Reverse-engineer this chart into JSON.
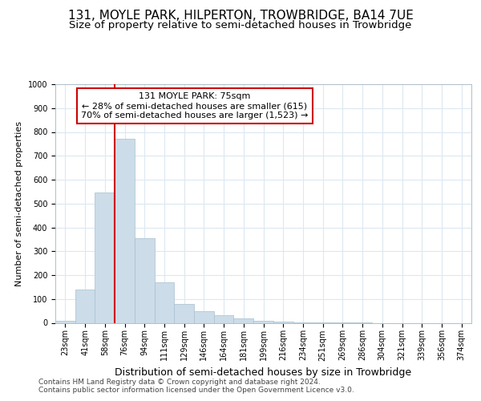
{
  "title1": "131, MOYLE PARK, HILPERTON, TROWBRIDGE, BA14 7UE",
  "title2": "Size of property relative to semi-detached houses in Trowbridge",
  "xlabel": "Distribution of semi-detached houses by size in Trowbridge",
  "ylabel": "Number of semi-detached properties",
  "categories": [
    "23sqm",
    "41sqm",
    "58sqm",
    "76sqm",
    "94sqm",
    "111sqm",
    "129sqm",
    "146sqm",
    "164sqm",
    "181sqm",
    "199sqm",
    "216sqm",
    "234sqm",
    "251sqm",
    "269sqm",
    "286sqm",
    "304sqm",
    "321sqm",
    "339sqm",
    "356sqm",
    "374sqm"
  ],
  "values": [
    8,
    138,
    545,
    770,
    355,
    170,
    80,
    50,
    33,
    17,
    10,
    5,
    3,
    2,
    1,
    1,
    0,
    0,
    0,
    0,
    0
  ],
  "bar_color": "#ccdce8",
  "bar_edge_color": "#a8c0d0",
  "vline_color": "#cc0000",
  "annotation_text": "131 MOYLE PARK: 75sqm\n← 28% of semi-detached houses are smaller (615)\n70% of semi-detached houses are larger (1,523) →",
  "annotation_box_color": "#ffffff",
  "annotation_box_edge": "#cc0000",
  "ylim": [
    0,
    1000
  ],
  "yticks": [
    0,
    100,
    200,
    300,
    400,
    500,
    600,
    700,
    800,
    900,
    1000
  ],
  "footer1": "Contains HM Land Registry data © Crown copyright and database right 2024.",
  "footer2": "Contains public sector information licensed under the Open Government Licence v3.0.",
  "bg_color": "#ffffff",
  "grid_color": "#dce8f0",
  "title1_fontsize": 11,
  "title2_fontsize": 9.5,
  "xlabel_fontsize": 9,
  "ylabel_fontsize": 8,
  "tick_fontsize": 7,
  "annotation_fontsize": 8,
  "footer_fontsize": 6.5
}
